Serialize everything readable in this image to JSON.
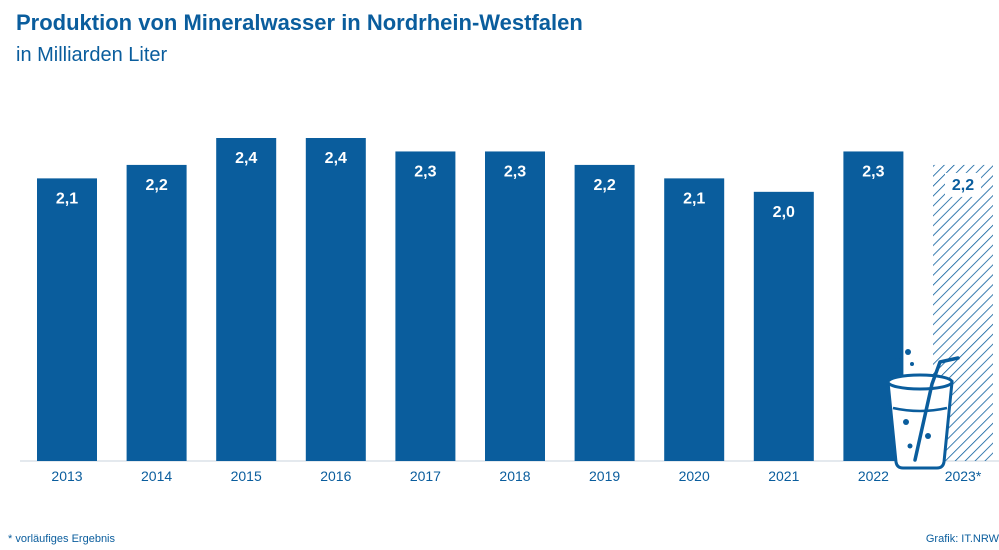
{
  "header": {
    "title": "Produktion von Mineralwasser in Nordrhein-Westfalen",
    "subtitle": "in Milliarden Liter"
  },
  "chart_data": {
    "type": "bar",
    "title": "Produktion von Mineralwasser in Nordrhein-Westfalen",
    "subtitle": "in Milliarden Liter",
    "categories": [
      "2013",
      "2014",
      "2015",
      "2016",
      "2017",
      "2018",
      "2019",
      "2020",
      "2021",
      "2022",
      "2023*"
    ],
    "values": [
      2.1,
      2.2,
      2.4,
      2.4,
      2.3,
      2.3,
      2.2,
      2.1,
      2.0,
      2.3,
      2.2
    ],
    "value_labels": [
      "2,1",
      "2,2",
      "2,4",
      "2,4",
      "2,3",
      "2,3",
      "2,2",
      "2,1",
      "2,0",
      "2,3",
      "2,2"
    ],
    "provisional": [
      false,
      false,
      false,
      false,
      false,
      false,
      false,
      false,
      false,
      false,
      true
    ],
    "ylim": [
      0,
      2.4
    ],
    "xlabel": "",
    "ylabel": "",
    "grid": false
  },
  "footer": {
    "footnote": "*  vorläufiges Ergebnis",
    "source": "Grafik: IT.NRW"
  },
  "colors": {
    "bar": "#0a5d9d",
    "text": "#0a5d9d",
    "label": "#ffffff",
    "baseline": "#c8d3dc"
  },
  "icons": {
    "decoration": "water-glass-icon"
  }
}
